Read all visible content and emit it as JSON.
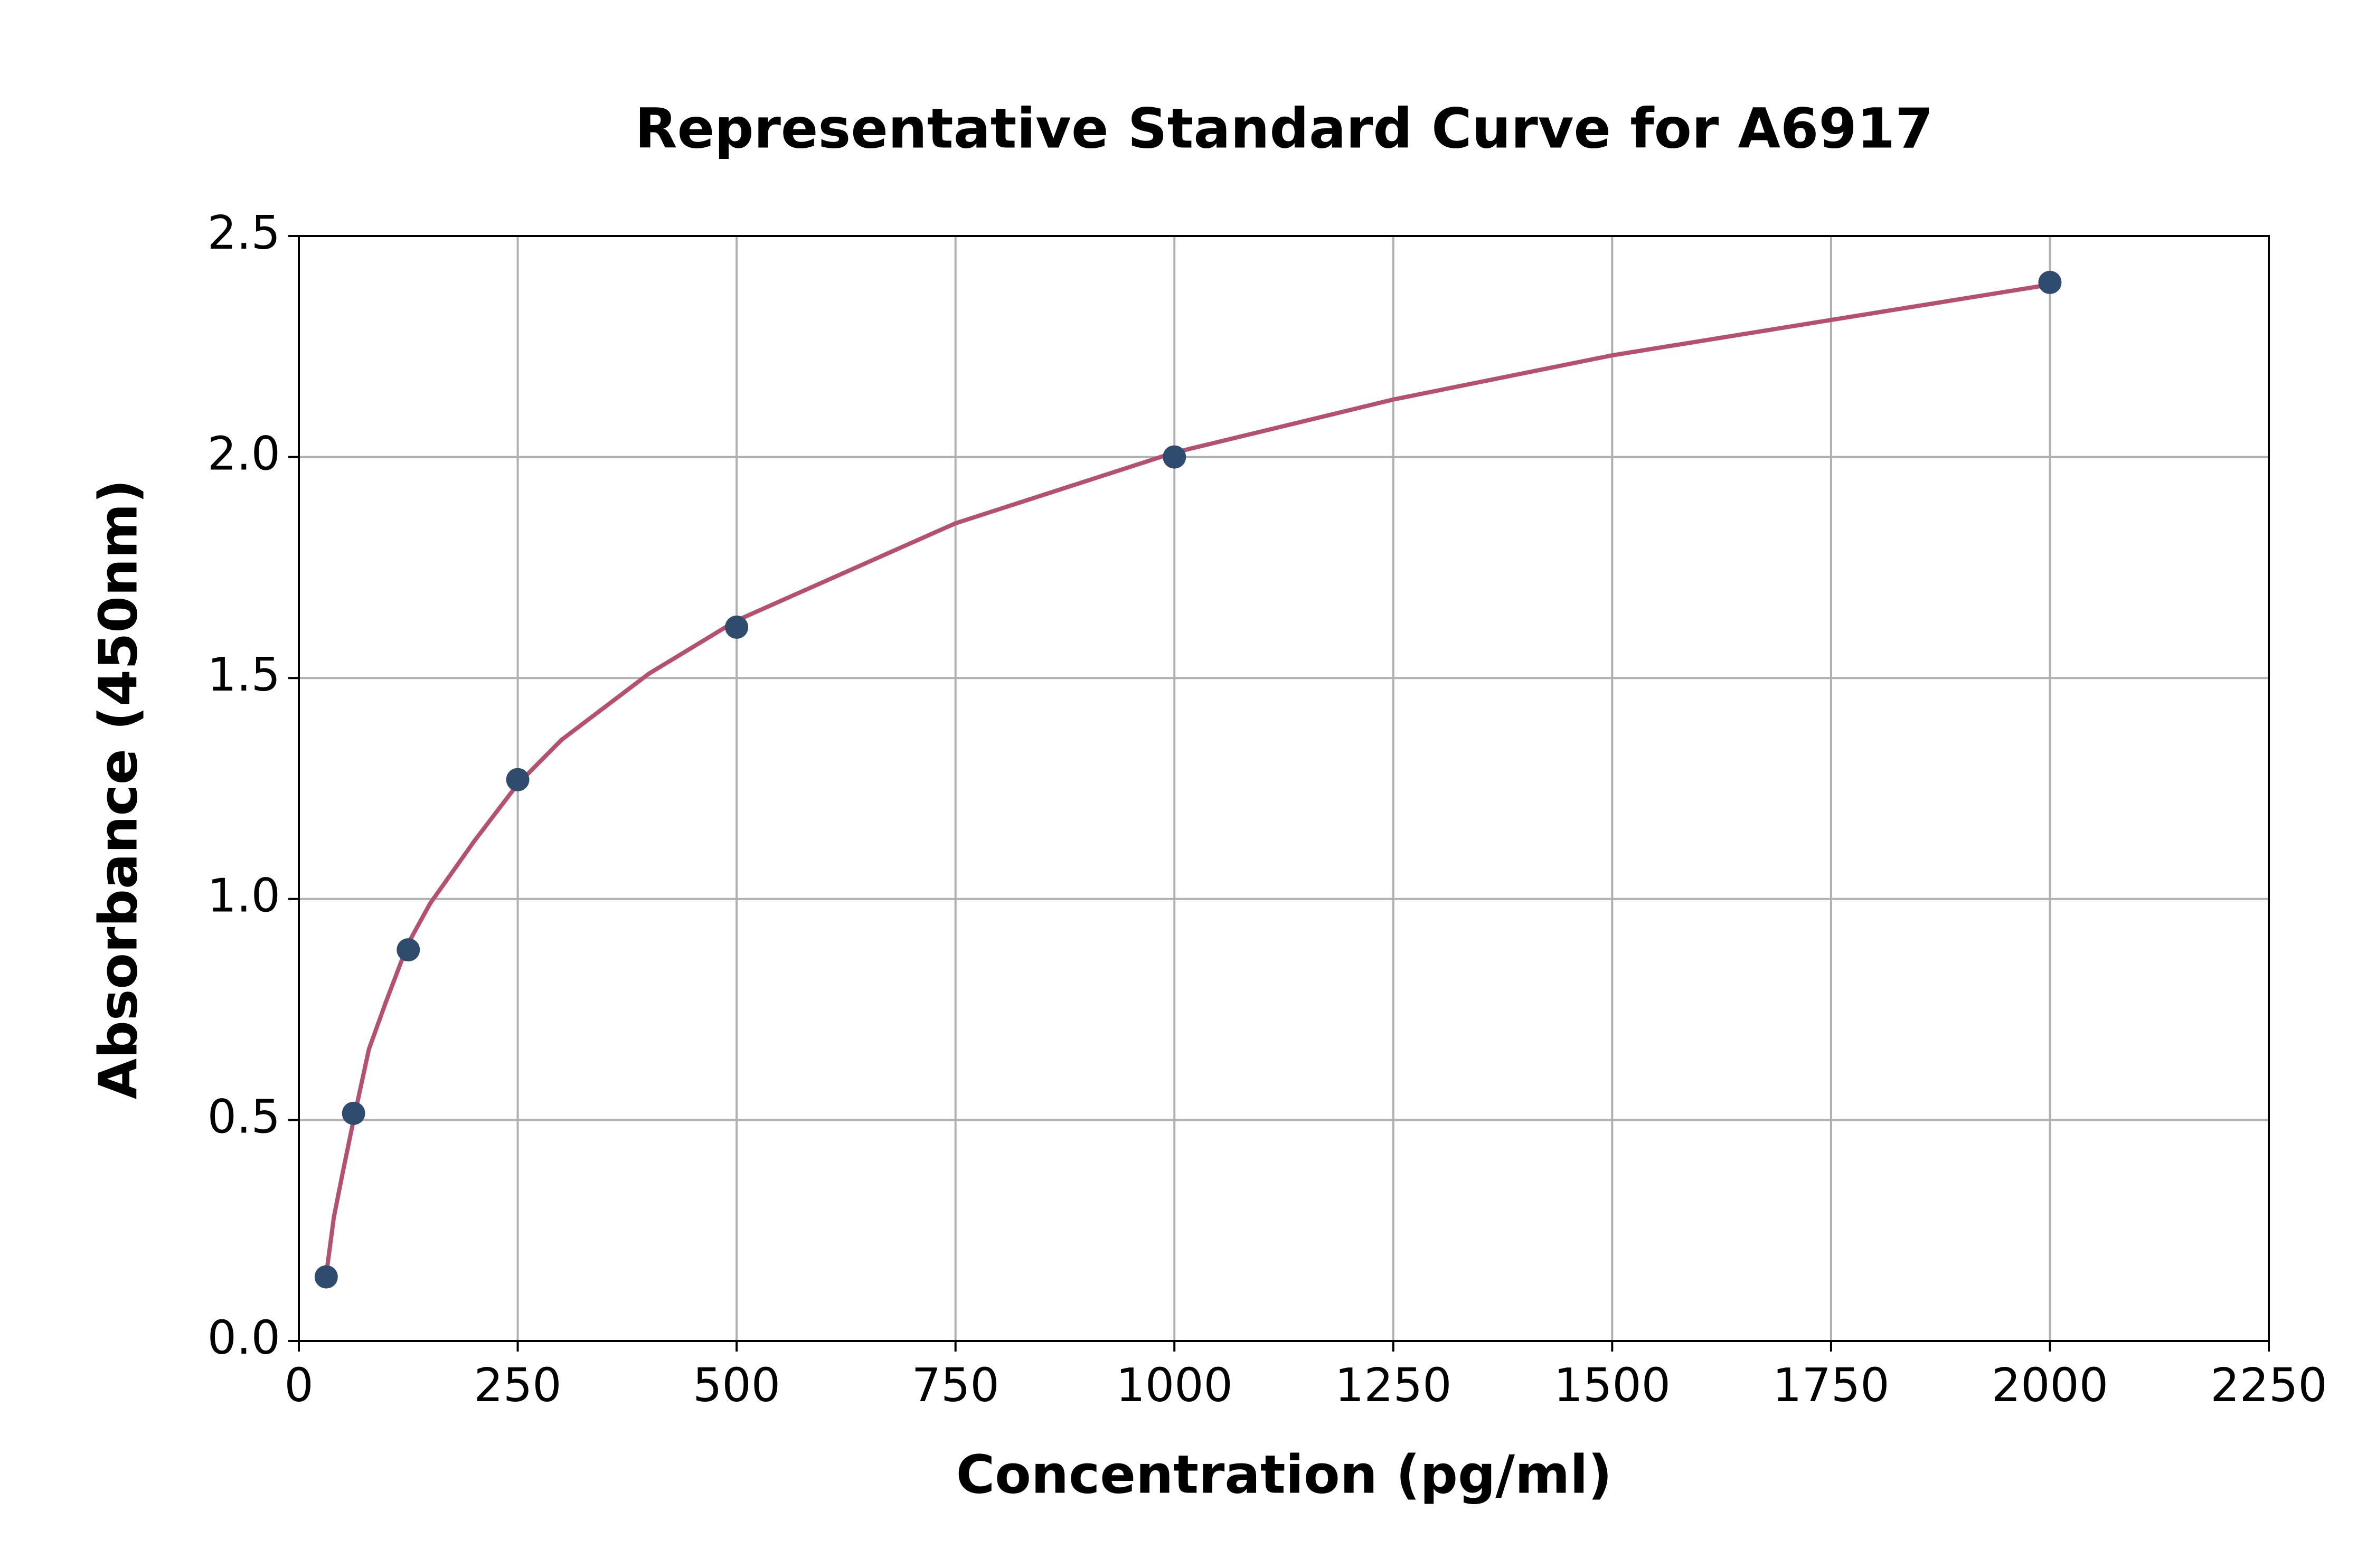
{
  "chart_data": {
    "type": "scatter",
    "title": "Representative Standard Curve for A6917",
    "x_label": "Concentration (pg/ml)",
    "y_label": "Absorbance (450nm)",
    "series": [
      {
        "type": "line",
        "color": "#b5506e",
        "x": [
          31.25,
          40,
          50,
          62.5,
          80,
          100,
          125,
          150,
          200,
          250,
          300,
          400,
          500,
          750,
          1000,
          1250,
          1500,
          1750,
          2000
        ],
        "values": [
          0.15,
          0.28,
          0.38,
          0.5,
          0.66,
          0.77,
          0.9,
          0.99,
          1.13,
          1.26,
          1.36,
          1.51,
          1.63,
          1.85,
          2.01,
          2.13,
          2.23,
          2.31,
          2.39
        ]
      },
      {
        "type": "scatter",
        "color": "#2f4b6e",
        "x": [
          31.25,
          62.5,
          125,
          250,
          500,
          1000,
          2000
        ],
        "values": [
          0.145,
          0.515,
          0.885,
          1.27,
          1.615,
          2.0,
          2.395
        ]
      }
    ],
    "xlim": [
      0,
      2250
    ],
    "xticks": [
      0,
      250,
      500,
      750,
      1000,
      1250,
      1500,
      1750,
      2000,
      2250
    ],
    "ylim": [
      0,
      2.5
    ],
    "yticks": [
      {
        "value": 0,
        "label": "0.0"
      },
      0.5,
      {
        "value": 1,
        "label": "1.0"
      },
      1.5,
      {
        "value": 2,
        "label": "2.0"
      },
      2.5
    ],
    "grid": true
  }
}
